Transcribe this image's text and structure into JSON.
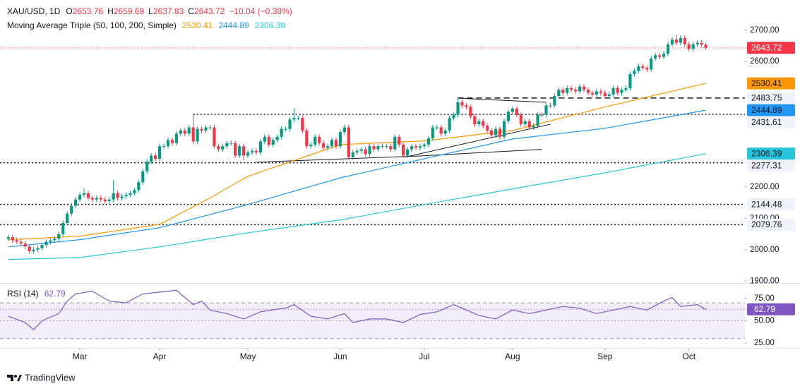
{
  "chart_data": {
    "type": "candlestick",
    "symbol": "XAU/USD, 1D",
    "ohlc_keys": [
      "O",
      "H",
      "L",
      "C"
    ],
    "change": "−10.04 (−0.38%)",
    "ma_title": "Moving Average Triple (50, 100, 200, Simple)",
    "up_color": "#089981",
    "down_color": "#f23645",
    "xlim": [
      -2,
      172.8
    ],
    "xticks": [
      {
        "value": 17,
        "label": "Mar"
      },
      {
        "value": 36,
        "label": "Apr"
      },
      {
        "value": 57,
        "label": "May"
      },
      {
        "value": 79,
        "label": "Jun"
      },
      {
        "value": 99,
        "label": "Jul"
      },
      {
        "value": 120,
        "label": "Aug"
      },
      {
        "value": 142,
        "label": "Sep"
      },
      {
        "value": 162,
        "label": "Oct"
      }
    ],
    "ylim": [
      1896,
      2785
    ],
    "yticks": [
      {
        "value": 1900,
        "label": "1900.00"
      },
      {
        "value": 2000,
        "label": "2000.00"
      },
      {
        "value": 2100,
        "label": "2100.00"
      },
      {
        "value": 2200,
        "label": "2200.00"
      },
      {
        "value": 2600,
        "label": "2600.00"
      },
      {
        "value": 2700,
        "label": "2700.00"
      }
    ],
    "candles": {
      "open": [
        2035,
        2040,
        2030,
        2025,
        2020,
        2010,
        1995,
        2000,
        2005,
        2015,
        2025,
        2030,
        2035,
        2050,
        2085,
        2115,
        2140,
        2160,
        2175,
        2180,
        2165,
        2160,
        2165,
        2160,
        2155,
        2160,
        2180,
        2165,
        2170,
        2175,
        2180,
        2190,
        2215,
        2250,
        2280,
        2300,
        2290,
        2330,
        2330,
        2350,
        2340,
        2370,
        2380,
        2370,
        2390,
        2345,
        2385,
        2380,
        2390,
        2390,
        2330,
        2320,
        2330,
        2340,
        2340,
        2300,
        2330,
        2300,
        2310,
        2315,
        2310,
        2345,
        2360,
        2335,
        2350,
        2360,
        2385,
        2385,
        2415,
        2420,
        2420,
        2380,
        2330,
        2335,
        2360,
        2340,
        2325,
        2330,
        2350,
        2330,
        2375,
        2390,
        2295,
        2310,
        2315,
        2320,
        2305,
        2330,
        2320,
        2330,
        2330,
        2330,
        2320,
        2360,
        2335,
        2300,
        2320,
        2330,
        2325,
        2330,
        2335,
        2355,
        2390,
        2390,
        2370,
        2380,
        2420,
        2430,
        2470,
        2460,
        2455,
        2425,
        2400,
        2410,
        2395,
        2380,
        2365,
        2385,
        2360,
        2410,
        2440,
        2450,
        2430,
        2400,
        2410,
        2390,
        2395,
        2430,
        2430,
        2460,
        2460,
        2490,
        2510,
        2500,
        2515,
        2510,
        2505,
        2520,
        2510,
        2500,
        2495,
        2505,
        2500,
        2490,
        2495,
        2515,
        2500,
        2510,
        2515,
        2560,
        2570,
        2585,
        2580,
        2575,
        2610,
        2620,
        2615,
        2625,
        2655,
        2670,
        2660,
        2675,
        2655,
        2640,
        2655,
        2660,
        2653.76
      ],
      "high": [
        2048,
        2048,
        2038,
        2033,
        2028,
        2018,
        2008,
        2013,
        2023,
        2033,
        2038,
        2043,
        2058,
        2093,
        2123,
        2148,
        2168,
        2183,
        2195,
        2188,
        2173,
        2173,
        2173,
        2168,
        2168,
        2222,
        2188,
        2178,
        2183,
        2188,
        2198,
        2223,
        2258,
        2288,
        2308,
        2308,
        2338,
        2338,
        2358,
        2358,
        2378,
        2388,
        2388,
        2398,
        2431,
        2393,
        2393,
        2398,
        2398,
        2398,
        2338,
        2338,
        2348,
        2348,
        2348,
        2338,
        2338,
        2318,
        2323,
        2323,
        2353,
        2368,
        2368,
        2358,
        2368,
        2393,
        2393,
        2423,
        2450,
        2428,
        2428,
        2388,
        2343,
        2368,
        2368,
        2348,
        2338,
        2358,
        2358,
        2383,
        2398,
        2398,
        2318,
        2323,
        2328,
        2328,
        2338,
        2338,
        2338,
        2338,
        2338,
        2338,
        2368,
        2368,
        2343,
        2328,
        2338,
        2338,
        2338,
        2343,
        2363,
        2398,
        2398,
        2398,
        2388,
        2428,
        2438,
        2483,
        2478,
        2468,
        2463,
        2433,
        2418,
        2418,
        2403,
        2388,
        2393,
        2393,
        2418,
        2448,
        2458,
        2458,
        2438,
        2418,
        2418,
        2403,
        2438,
        2438,
        2468,
        2468,
        2498,
        2518,
        2518,
        2523,
        2523,
        2518,
        2528,
        2528,
        2518,
        2508,
        2513,
        2513,
        2508,
        2503,
        2523,
        2523,
        2518,
        2523,
        2568,
        2578,
        2593,
        2593,
        2588,
        2618,
        2628,
        2628,
        2633,
        2663,
        2678,
        2685,
        2683,
        2683,
        2663,
        2663,
        2668,
        2668,
        2659.69
      ],
      "low": [
        2027,
        2022,
        2017,
        2012,
        2002,
        1987,
        1987,
        1992,
        1997,
        2007,
        2017,
        2022,
        2027,
        2042,
        2077,
        2107,
        2132,
        2152,
        2167,
        2157,
        2152,
        2152,
        2152,
        2147,
        2147,
        2152,
        2157,
        2157,
        2162,
        2167,
        2172,
        2182,
        2207,
        2242,
        2272,
        2282,
        2282,
        2322,
        2322,
        2332,
        2332,
        2362,
        2362,
        2362,
        2337,
        2337,
        2372,
        2372,
        2382,
        2322,
        2312,
        2312,
        2322,
        2332,
        2292,
        2292,
        2285,
        2292,
        2302,
        2302,
        2302,
        2337,
        2327,
        2327,
        2342,
        2352,
        2377,
        2377,
        2407,
        2412,
        2372,
        2322,
        2322,
        2327,
        2332,
        2317,
        2317,
        2322,
        2322,
        2322,
        2367,
        2287,
        2287,
        2302,
        2307,
        2297,
        2297,
        2312,
        2312,
        2322,
        2322,
        2312,
        2312,
        2327,
        2292,
        2292,
        2312,
        2317,
        2317,
        2322,
        2327,
        2347,
        2382,
        2362,
        2362,
        2372,
        2412,
        2422,
        2452,
        2447,
        2417,
        2392,
        2392,
        2387,
        2372,
        2357,
        2357,
        2352,
        2352,
        2402,
        2432,
        2422,
        2392,
        2392,
        2382,
        2382,
        2387,
        2422,
        2422,
        2452,
        2452,
        2482,
        2492,
        2492,
        2502,
        2497,
        2497,
        2502,
        2492,
        2487,
        2487,
        2492,
        2482,
        2482,
        2487,
        2492,
        2492,
        2502,
        2507,
        2552,
        2562,
        2572,
        2567,
        2567,
        2602,
        2607,
        2607,
        2617,
        2647,
        2652,
        2652,
        2647,
        2632,
        2632,
        2647,
        2645,
        2637.83
      ],
      "close": [
        2040,
        2030,
        2025,
        2020,
        2010,
        1995,
        2000,
        2005,
        2015,
        2025,
        2030,
        2035,
        2050,
        2085,
        2115,
        2140,
        2160,
        2175,
        2180,
        2165,
        2160,
        2165,
        2160,
        2155,
        2160,
        2180,
        2165,
        2170,
        2175,
        2180,
        2190,
        2215,
        2250,
        2280,
        2300,
        2290,
        2330,
        2330,
        2350,
        2340,
        2370,
        2380,
        2370,
        2390,
        2345,
        2385,
        2380,
        2390,
        2390,
        2330,
        2320,
        2330,
        2340,
        2340,
        2300,
        2330,
        2300,
        2310,
        2315,
        2310,
        2345,
        2360,
        2335,
        2350,
        2360,
        2385,
        2385,
        2415,
        2420,
        2420,
        2380,
        2330,
        2335,
        2360,
        2340,
        2325,
        2330,
        2350,
        2330,
        2375,
        2390,
        2295,
        2310,
        2315,
        2320,
        2305,
        2330,
        2320,
        2330,
        2330,
        2330,
        2320,
        2360,
        2335,
        2300,
        2320,
        2330,
        2325,
        2330,
        2335,
        2355,
        2390,
        2390,
        2370,
        2380,
        2420,
        2430,
        2470,
        2460,
        2455,
        2425,
        2400,
        2410,
        2395,
        2380,
        2365,
        2385,
        2360,
        2410,
        2440,
        2450,
        2430,
        2400,
        2410,
        2390,
        2395,
        2430,
        2430,
        2460,
        2460,
        2490,
        2510,
        2500,
        2515,
        2510,
        2505,
        2520,
        2510,
        2500,
        2495,
        2505,
        2500,
        2490,
        2495,
        2515,
        2500,
        2510,
        2515,
        2560,
        2570,
        2585,
        2580,
        2575,
        2610,
        2620,
        2615,
        2625,
        2655,
        2670,
        2660,
        2675,
        2655,
        2640,
        2655,
        2660,
        2653.76,
        2643.72
      ]
    },
    "series": [
      {
        "color": "#ff9800",
        "x": [
          0,
          17,
          36,
          48,
          57,
          79,
          99,
          120,
          142,
          166
        ],
        "values": [
          2032,
          2043,
          2081,
          2165,
          2234,
          2335,
          2347,
          2380,
          2455,
          2530.41
        ]
      },
      {
        "color": "#2196f3",
        "x": [
          0,
          17,
          36,
          57,
          79,
          99,
          120,
          142,
          166
        ],
        "values": [
          2009,
          2032,
          2070,
          2144,
          2229,
          2290,
          2353,
          2387,
          2444.89
        ]
      },
      {
        "color": "#26c6da",
        "x": [
          0,
          17,
          36,
          57,
          79,
          99,
          120,
          142,
          166
        ],
        "values": [
          1969,
          1975,
          2009,
          2054,
          2095,
          2144,
          2194,
          2245,
          2306.39
        ]
      }
    ],
    "levels": [
      {
        "value": 2483.75,
        "style": "dashed",
        "start": 107
      },
      {
        "value": 2431.61,
        "style": "dotted",
        "start": 44
      },
      {
        "value": 2277.31,
        "style": "dotted"
      },
      {
        "value": 2144.48,
        "style": "dotted"
      },
      {
        "value": 2079.76,
        "style": "dotted"
      }
    ],
    "trendlines": [
      [
        [
          59,
          2279
        ],
        [
          98,
          2299
        ]
      ],
      [
        [
          98,
          2299
        ],
        [
          127,
          2320
        ]
      ],
      [
        [
          95,
          2297
        ],
        [
          129,
          2400
        ]
      ],
      [
        [
          107,
          2483
        ],
        [
          128,
          2470
        ]
      ]
    ],
    "rsi": {
      "title": "RSI (14)",
      "color": "#7e57c2",
      "ylim": [
        22,
        89
      ],
      "yticks": [
        {
          "value": 25,
          "label": "25.00"
        },
        {
          "value": 50,
          "label": "50.00"
        },
        {
          "value": 75,
          "label": "75.00"
        }
      ],
      "bands": [
        30,
        70
      ],
      "x": [
        0,
        4,
        6,
        8,
        12,
        14,
        16,
        20,
        24,
        28,
        32,
        36,
        40,
        44,
        46,
        48,
        50,
        52,
        56,
        60,
        64,
        66,
        68,
        72,
        76,
        80,
        82,
        86,
        90,
        94,
        98,
        102,
        106,
        108,
        112,
        116,
        120,
        124,
        128,
        132,
        136,
        140,
        144,
        148,
        152,
        156,
        158,
        160,
        164,
        166
      ],
      "values": [
        55,
        48,
        40,
        50,
        58,
        72,
        80,
        83,
        72,
        70,
        80,
        82,
        84,
        68,
        72,
        62,
        60,
        58,
        52,
        60,
        63,
        64,
        68,
        55,
        52,
        58,
        48,
        52,
        52,
        48,
        57,
        60,
        68,
        64,
        56,
        52,
        62,
        58,
        62,
        66,
        64,
        58,
        62,
        66,
        62,
        72,
        76,
        66,
        68,
        62.79
      ]
    }
  },
  "brand": "TradingView"
}
